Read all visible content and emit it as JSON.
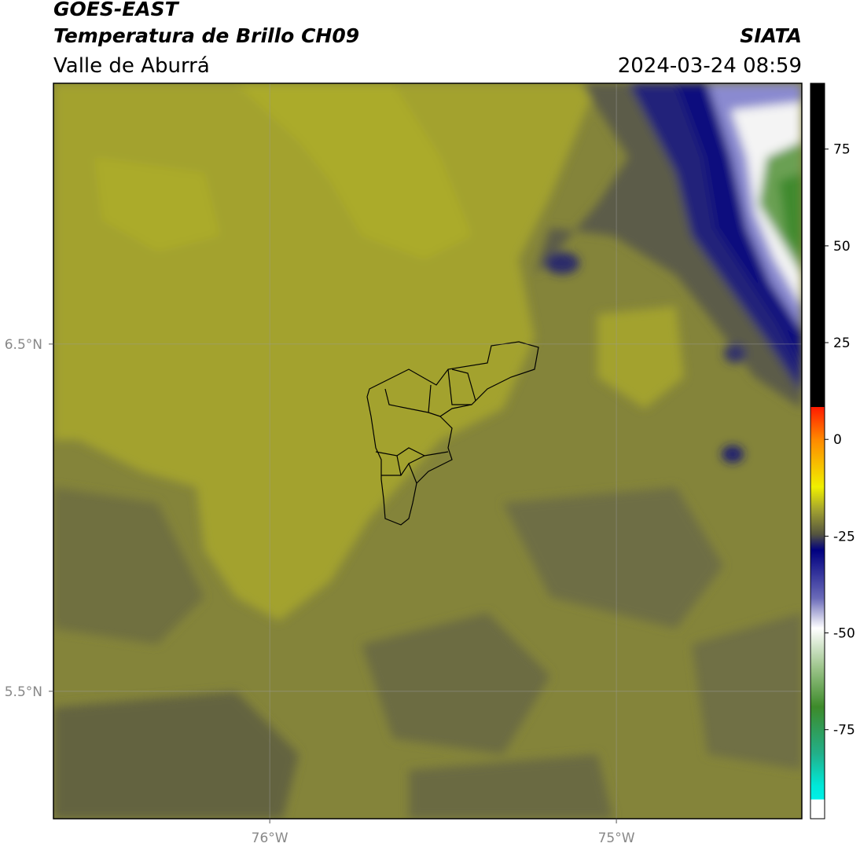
{
  "header": {
    "title": "GOES-EAST",
    "subtitle": "Temperatura de Brillo CH09",
    "source": "SIATA",
    "region": "Valle de Aburrá",
    "timestamp": "2024-03-24 08:59"
  },
  "map": {
    "xlim": [
      -76.624,
      -74.465
    ],
    "ylim": [
      5.133,
      7.251
    ],
    "xticks": [
      {
        "value": -76,
        "label": "76°W"
      },
      {
        "value": -75,
        "label": "75°W"
      }
    ],
    "yticks": [
      {
        "value": 6.5,
        "label": "6.5°N"
      },
      {
        "value": 5.5,
        "label": "5.5°N"
      }
    ],
    "grid": true
  },
  "colorbar": {
    "lim": [
      -98,
      92
    ],
    "ticks": [
      75,
      50,
      25,
      0,
      -25,
      -50,
      -75
    ]
  }
}
